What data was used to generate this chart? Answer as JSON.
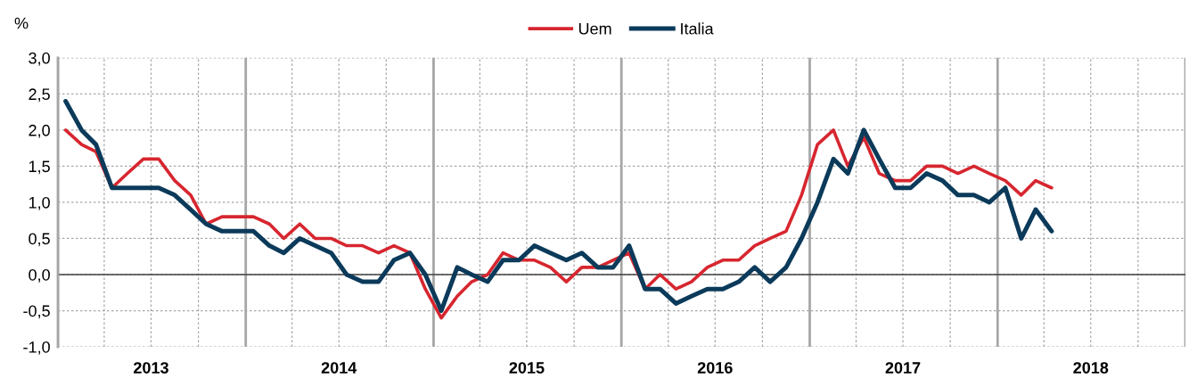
{
  "chart_data": {
    "type": "line",
    "ylabel": "%",
    "legend": "top",
    "grid": true,
    "marker": "none",
    "line_style": "solid",
    "x": [
      "2013-01-16",
      "2013-02-16",
      "2013-03-16",
      "2013-04-16",
      "2013-05-16",
      "2013-06-16",
      "2013-07-16",
      "2013-08-16",
      "2013-09-16",
      "2013-10-16",
      "2013-11-16",
      "2013-12-16",
      "2014-01-16",
      "2014-02-16",
      "2014-03-16",
      "2014-04-16",
      "2014-05-16",
      "2014-06-16",
      "2014-07-16",
      "2014-08-16",
      "2014-09-16",
      "2014-10-16",
      "2014-11-16",
      "2014-12-16",
      "2015-01-16",
      "2015-02-16",
      "2015-03-16",
      "2015-04-16",
      "2015-05-16",
      "2015-06-16",
      "2015-07-16",
      "2015-08-16",
      "2015-09-16",
      "2015-10-16",
      "2015-11-16",
      "2015-12-16",
      "2016-01-16",
      "2016-02-16",
      "2016-03-16",
      "2016-04-16",
      "2016-05-16",
      "2016-06-16",
      "2016-07-16",
      "2016-08-16",
      "2016-09-16",
      "2016-10-16",
      "2016-11-16",
      "2016-12-16",
      "2017-01-16",
      "2017-02-16",
      "2017-03-16",
      "2017-04-16",
      "2017-05-16",
      "2017-06-16",
      "2017-07-16",
      "2017-08-16",
      "2017-09-16",
      "2017-10-16",
      "2017-11-16",
      "2017-12-16",
      "2018-01-16",
      "2018-02-16",
      "2018-03-16",
      "2018-04-16"
    ],
    "series": [
      {
        "name": "Uem",
        "color": "#d7262f",
        "values": [
          2.0,
          1.8,
          1.7,
          1.2,
          1.4,
          1.6,
          1.6,
          1.3,
          1.1,
          0.7,
          0.8,
          0.8,
          0.8,
          0.7,
          0.5,
          0.7,
          0.5,
          0.5,
          0.4,
          0.4,
          0.3,
          0.4,
          0.3,
          -0.2,
          -0.6,
          -0.3,
          -0.1,
          0.0,
          0.3,
          0.2,
          0.2,
          0.1,
          -0.1,
          0.1,
          0.1,
          0.2,
          0.3,
          -0.2,
          0.0,
          -0.2,
          -0.1,
          0.1,
          0.2,
          0.2,
          0.4,
          0.5,
          0.6,
          1.1,
          1.8,
          2.0,
          1.5,
          1.9,
          1.4,
          1.3,
          1.3,
          1.5,
          1.5,
          1.4,
          1.5,
          1.4,
          1.3,
          1.1,
          1.3,
          1.2
        ]
      },
      {
        "name": "Italia",
        "color": "#0b3a5a",
        "values": [
          2.4,
          2.0,
          1.8,
          1.2,
          1.2,
          1.2,
          1.2,
          1.1,
          0.9,
          0.7,
          0.6,
          0.6,
          0.6,
          0.4,
          0.3,
          0.5,
          0.4,
          0.3,
          0.0,
          -0.1,
          -0.1,
          0.2,
          0.3,
          0.0,
          -0.5,
          0.1,
          0.0,
          -0.1,
          0.2,
          0.2,
          0.4,
          0.3,
          0.2,
          0.3,
          0.1,
          0.1,
          0.4,
          -0.2,
          -0.2,
          -0.4,
          -0.3,
          -0.2,
          -0.2,
          -0.1,
          0.1,
          -0.1,
          0.1,
          0.5,
          1.0,
          1.6,
          1.4,
          2.0,
          1.6,
          1.2,
          1.2,
          1.4,
          1.3,
          1.1,
          1.1,
          1.0,
          1.2,
          0.5,
          0.9,
          0.6
        ]
      }
    ],
    "xlim": [
      "2013-01-01",
      "2019-01-01"
    ],
    "xticks": [
      {
        "value": "2013-01-01",
        "label": null
      },
      {
        "value": "2013-04-01",
        "label": null
      },
      {
        "value": "2013-07-01",
        "label": "2013"
      },
      {
        "value": "2013-10-01",
        "label": null
      },
      {
        "value": "2014-01-01",
        "label": null
      },
      {
        "value": "2014-04-01",
        "label": null
      },
      {
        "value": "2014-07-01",
        "label": "2014"
      },
      {
        "value": "2014-10-01",
        "label": null
      },
      {
        "value": "2015-01-01",
        "label": null
      },
      {
        "value": "2015-04-01",
        "label": null
      },
      {
        "value": "2015-07-01",
        "label": "2015"
      },
      {
        "value": "2015-10-01",
        "label": null
      },
      {
        "value": "2016-01-01",
        "label": null
      },
      {
        "value": "2016-04-01",
        "label": null
      },
      {
        "value": "2016-07-01",
        "label": "2016"
      },
      {
        "value": "2016-10-01",
        "label": null
      },
      {
        "value": "2017-01-01",
        "label": null
      },
      {
        "value": "2017-04-01",
        "label": null
      },
      {
        "value": "2017-07-01",
        "label": "2017"
      },
      {
        "value": "2017-10-01",
        "label": null
      },
      {
        "value": "2018-01-01",
        "label": null
      },
      {
        "value": "2018-04-01",
        "label": null
      },
      {
        "value": "2018-07-01",
        "label": "2018"
      },
      {
        "value": "2018-10-01",
        "label": null
      },
      {
        "value": "2019-01-01",
        "label": null
      }
    ],
    "ylim": [
      -1.0,
      3.0
    ],
    "yticks": [
      {
        "value": -1.0,
        "label": "-1,0"
      },
      {
        "value": -0.5,
        "label": "-0,5"
      },
      {
        "value": 0.0,
        "label": "0,0"
      },
      {
        "value": 0.5,
        "label": "0,5"
      },
      {
        "value": 1.0,
        "label": "1,0"
      },
      {
        "value": 1.5,
        "label": "1,5"
      },
      {
        "value": 2.0,
        "label": "2,0"
      },
      {
        "value": 2.5,
        "label": "2,5"
      },
      {
        "value": 3.0,
        "label": "3,0"
      }
    ],
    "ref_lines": [
      {
        "axis": "y",
        "value": 0,
        "color": "#404040",
        "line_style": "solid"
      }
    ]
  }
}
